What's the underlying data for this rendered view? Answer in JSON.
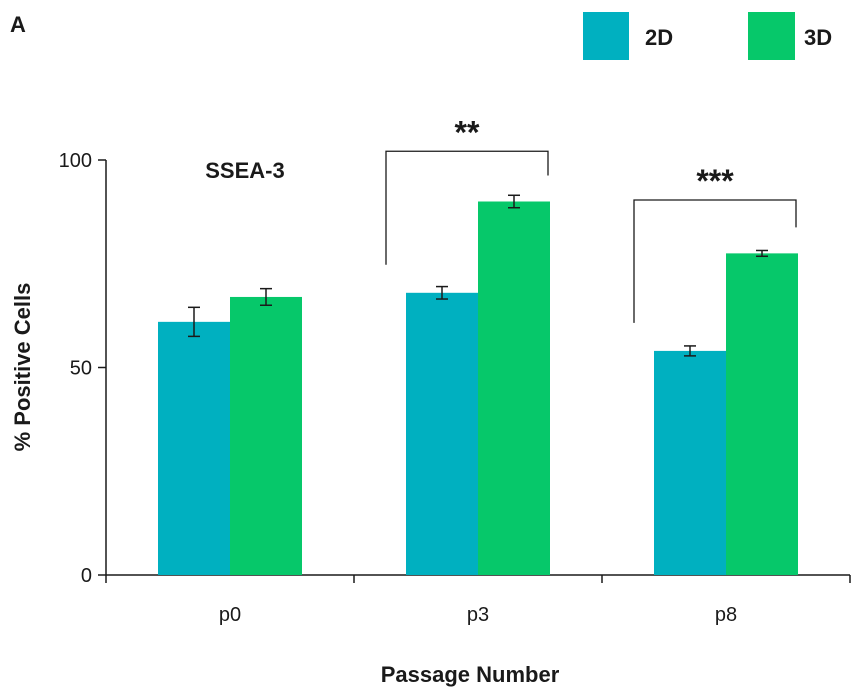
{
  "chart_data": {
    "type": "bar",
    "panel_label": "A",
    "annotation": "SSEA-3",
    "xlabel": "Passage Number",
    "ylabel": "% Positive Cells",
    "categories": [
      "p0",
      "p3",
      "p8"
    ],
    "ylim": [
      0,
      100
    ],
    "yticks": [
      0,
      50,
      100
    ],
    "legend_position": "top-right",
    "series": [
      {
        "name": "2D",
        "color": "#00b0c0",
        "values": [
          61,
          68,
          54
        ],
        "errors": [
          3.5,
          1.5,
          1.2
        ]
      },
      {
        "name": "3D",
        "color": "#06c86a",
        "values": [
          67,
          90,
          77.5
        ],
        "errors": [
          2,
          1.5,
          0.7
        ]
      }
    ],
    "significance": [
      {
        "category_index": 1,
        "label": "**"
      },
      {
        "category_index": 2,
        "label": "***"
      }
    ]
  }
}
